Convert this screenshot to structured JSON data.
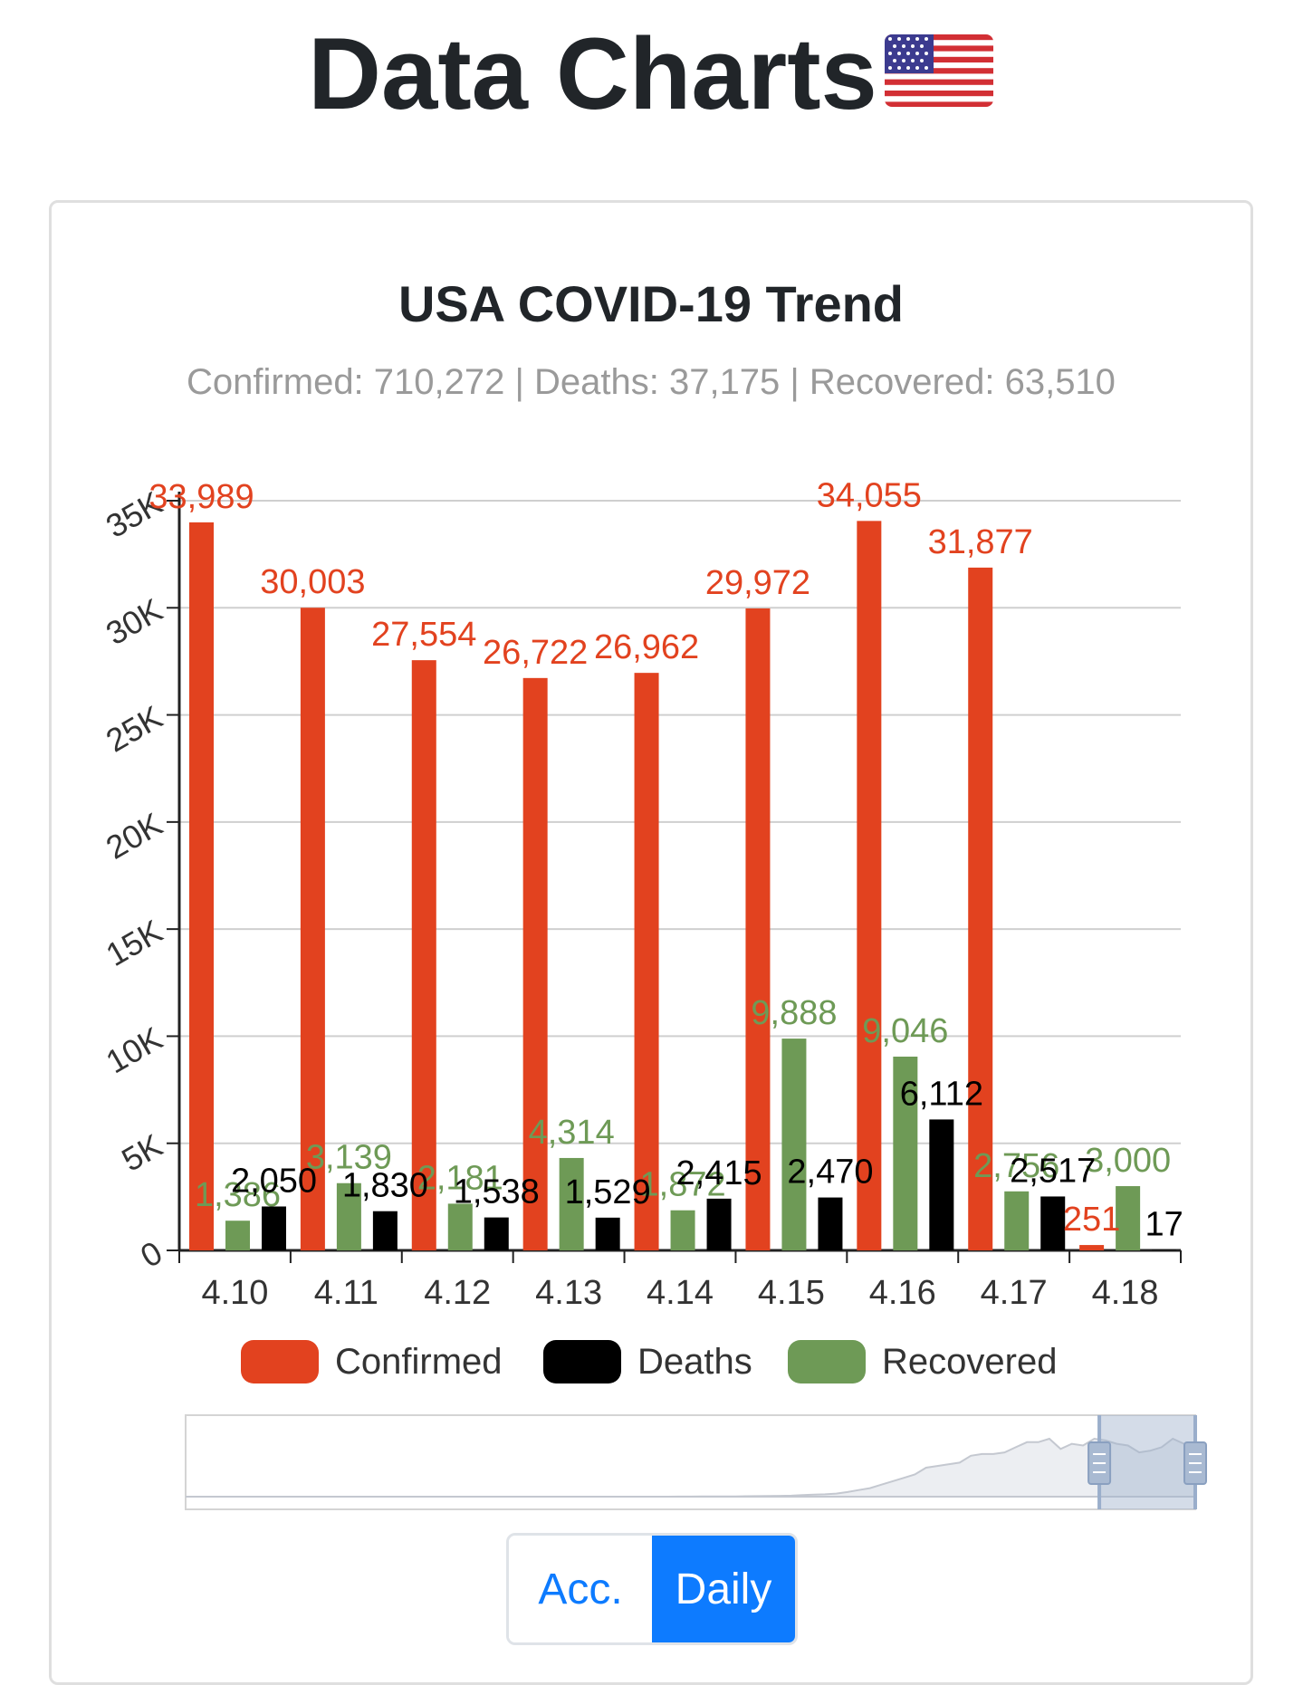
{
  "page": {
    "title": "Data Charts",
    "flag_icon": "us-flag-icon"
  },
  "toggle": {
    "acc_label": "Acc.",
    "daily_label": "Daily",
    "selected": "Daily"
  },
  "colors": {
    "confirmed": "#e2421f",
    "deaths": "#000000",
    "recovered": "#6e9a56",
    "accent": "#0d7bff"
  },
  "chart_data": {
    "type": "bar",
    "title": "USA COVID-19 Trend",
    "subtitle": "Confirmed: 710,272 | Deaths: 37,175 | Recovered: 63,510",
    "categories": [
      "4.10",
      "4.11",
      "4.12",
      "4.13",
      "4.14",
      "4.15",
      "4.16",
      "4.17",
      "4.18"
    ],
    "series": [
      {
        "name": "Confirmed",
        "values": [
          33989,
          30003,
          27554,
          26722,
          26962,
          29972,
          34055,
          31877,
          251
        ]
      },
      {
        "name": "Deaths",
        "values": [
          2050,
          1830,
          1538,
          1529,
          2415,
          2470,
          6112,
          2517,
          17
        ]
      },
      {
        "name": "Recovered",
        "values": [
          1386,
          3139,
          2181,
          4314,
          1872,
          9888,
          9046,
          2756,
          3000
        ]
      }
    ],
    "series_order_in_group": [
      "Confirmed",
      "Recovered",
      "Deaths"
    ],
    "yticks": [
      "0",
      "5K",
      "10K",
      "15K",
      "20K",
      "25K",
      "30K",
      "35K"
    ],
    "ylim": [
      0,
      35000
    ],
    "grid": true,
    "legend_position": "bottom",
    "zoom_window": [
      0.905,
      1.0
    ],
    "overview_series": [
      0,
      0,
      0,
      0,
      0,
      0,
      0,
      0,
      0,
      0,
      0,
      0,
      0,
      0,
      0,
      0,
      0,
      0,
      0,
      0,
      0,
      0,
      0,
      0,
      0,
      0,
      0,
      0,
      0,
      0,
      0,
      0,
      0,
      0,
      0,
      0,
      0,
      0,
      1,
      2,
      4,
      8,
      14,
      25,
      40,
      60,
      80,
      100,
      140,
      180,
      240,
      340,
      380,
      460,
      600,
      900,
      1200,
      1400,
      1800,
      2700,
      3900,
      5000,
      7000,
      9000,
      11000,
      13000,
      17000,
      18000,
      19000,
      20000,
      24000,
      25000,
      25000,
      26000,
      29000,
      32000,
      32000,
      34000,
      28000,
      31000,
      30000,
      34000,
      33000,
      31000,
      30000,
      26000,
      27000,
      29000,
      34000,
      31000,
      29000
    ]
  }
}
